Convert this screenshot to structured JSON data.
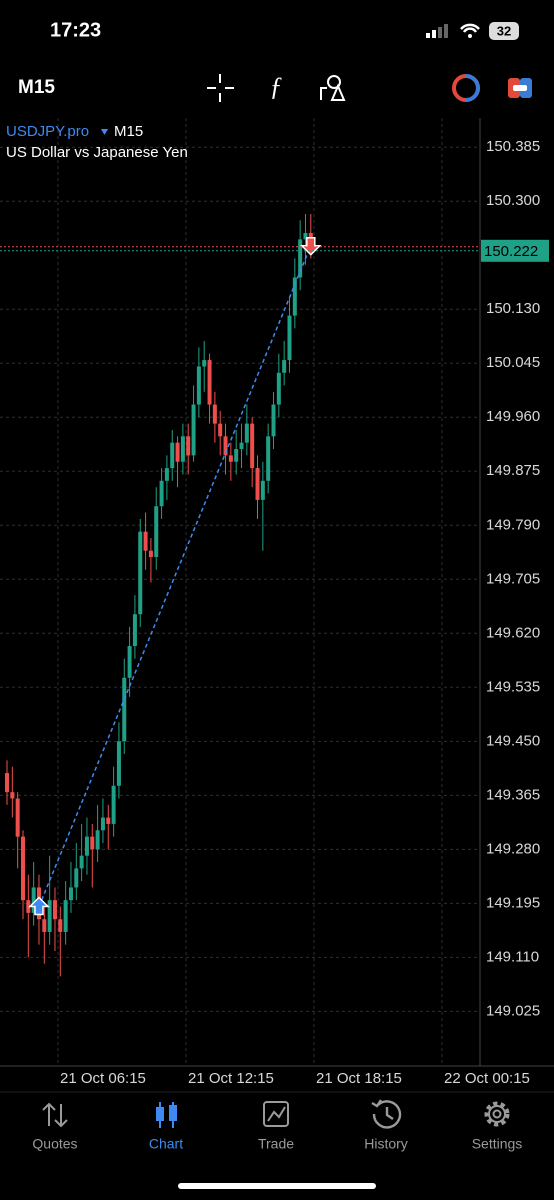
{
  "status_bar": {
    "time": "17:23",
    "battery": "32"
  },
  "toolbar": {
    "timeframe": "M15"
  },
  "chart_data": {
    "type": "candlestick",
    "symbol": "USDJPY.pro",
    "timeframe": "M15",
    "description": "US Dollar vs Japanese Yen",
    "up_color": "#1fa187",
    "down_color": "#ef4f4c",
    "grid": true,
    "ylim": [
      148.939,
      150.431
    ],
    "yticks": [
      150.385,
      {
        "value": 150.3,
        "label": "150.300"
      },
      {
        "value": 150.13,
        "label": "150.130"
      },
      150.045,
      {
        "value": 149.96,
        "label": "149.960"
      },
      149.875,
      {
        "value": 149.79,
        "label": "149.790"
      },
      149.705,
      {
        "value": 149.62,
        "label": "149.620"
      },
      149.535,
      {
        "value": 149.45,
        "label": "149.450"
      },
      149.365,
      {
        "value": 149.28,
        "label": "149.280"
      },
      149.195,
      {
        "value": 149.11,
        "label": "149.110"
      },
      149.025
    ],
    "xtick_labels": [
      "21 Oct 06:15",
      "21 Oct 12:15",
      "21 Oct 18:15",
      "22 Oct 00:15"
    ],
    "current_price": 150.222,
    "trade": {
      "open_price": 149.19,
      "close_price": 150.23
    },
    "candles": [
      [
        149.4,
        149.42,
        149.35,
        149.37
      ],
      [
        149.37,
        149.41,
        149.33,
        149.36
      ],
      [
        149.36,
        149.37,
        149.25,
        149.3
      ],
      [
        149.3,
        149.31,
        149.17,
        149.2
      ],
      [
        149.2,
        149.24,
        149.11,
        149.18
      ],
      [
        149.18,
        149.26,
        149.16,
        149.22
      ],
      [
        149.22,
        149.24,
        149.13,
        149.17
      ],
      [
        149.17,
        149.19,
        149.1,
        149.15
      ],
      [
        149.15,
        149.27,
        149.13,
        149.2
      ],
      [
        149.2,
        149.22,
        149.12,
        149.17
      ],
      [
        149.17,
        149.19,
        149.08,
        149.15
      ],
      [
        149.15,
        149.23,
        149.13,
        149.2
      ],
      [
        149.2,
        149.26,
        149.18,
        149.22
      ],
      [
        149.22,
        149.29,
        149.2,
        149.25
      ],
      [
        149.25,
        149.32,
        149.23,
        149.27
      ],
      [
        149.27,
        149.33,
        149.24,
        149.3
      ],
      [
        149.3,
        149.32,
        149.22,
        149.28
      ],
      [
        149.28,
        149.35,
        149.26,
        149.31
      ],
      [
        149.31,
        149.36,
        149.29,
        149.33
      ],
      [
        149.33,
        149.35,
        149.28,
        149.32
      ],
      [
        149.32,
        149.41,
        149.3,
        149.38
      ],
      [
        149.38,
        149.48,
        149.36,
        149.45
      ],
      [
        149.45,
        149.58,
        149.43,
        149.55
      ],
      [
        149.55,
        149.63,
        149.52,
        149.6
      ],
      [
        149.6,
        149.68,
        149.58,
        149.65
      ],
      [
        149.65,
        149.8,
        149.63,
        149.78
      ],
      [
        149.78,
        149.81,
        149.72,
        149.75
      ],
      [
        149.75,
        149.77,
        149.7,
        149.74
      ],
      [
        149.74,
        149.85,
        149.72,
        149.82
      ],
      [
        149.82,
        149.88,
        149.8,
        149.86
      ],
      [
        149.86,
        149.9,
        149.83,
        149.88
      ],
      [
        149.88,
        149.94,
        149.86,
        149.92
      ],
      [
        149.92,
        149.93,
        149.85,
        149.89
      ],
      [
        149.89,
        149.95,
        149.87,
        149.93
      ],
      [
        149.93,
        149.95,
        149.87,
        149.9
      ],
      [
        149.9,
        150.01,
        149.89,
        149.98
      ],
      [
        149.98,
        150.07,
        149.96,
        150.04
      ],
      [
        150.04,
        150.08,
        150.0,
        150.05
      ],
      [
        150.05,
        150.06,
        149.95,
        149.98
      ],
      [
        149.98,
        150.0,
        149.92,
        149.95
      ],
      [
        149.95,
        149.97,
        149.9,
        149.93
      ],
      [
        149.93,
        149.95,
        149.87,
        149.9
      ],
      [
        149.9,
        149.92,
        149.86,
        149.89
      ],
      [
        149.89,
        149.94,
        149.87,
        149.91
      ],
      [
        149.91,
        149.95,
        149.88,
        149.92
      ],
      [
        149.92,
        149.98,
        149.9,
        149.95
      ],
      [
        149.95,
        149.96,
        149.85,
        149.88
      ],
      [
        149.88,
        149.9,
        149.8,
        149.83
      ],
      [
        149.83,
        149.89,
        149.75,
        149.86
      ],
      [
        149.86,
        149.95,
        149.84,
        149.93
      ],
      [
        149.93,
        150.0,
        149.91,
        149.98
      ],
      [
        149.98,
        150.06,
        149.96,
        150.03
      ],
      [
        150.03,
        150.08,
        150.01,
        150.05
      ],
      [
        150.05,
        150.15,
        150.03,
        150.12
      ],
      [
        150.12,
        150.21,
        150.1,
        150.18
      ],
      [
        150.18,
        150.27,
        150.16,
        150.24
      ],
      [
        150.24,
        150.28,
        150.2,
        150.25
      ],
      [
        150.25,
        150.28,
        150.21,
        150.222
      ]
    ]
  },
  "nav": [
    "Quotes",
    "Chart",
    "Trade",
    "History",
    "Settings"
  ]
}
